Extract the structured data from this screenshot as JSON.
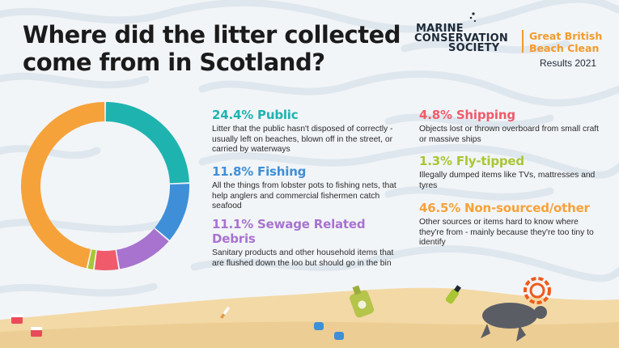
{
  "header": {
    "title": "Where did the litter collected come from in Scotland?"
  },
  "brand": {
    "org_line1": "MARINE",
    "org_line2": "CONSERVATION",
    "org_line3": "SOCIETY",
    "event": "Great British Beach Clean",
    "results": "Results 2021"
  },
  "colors": {
    "public": "#1fb3b0",
    "fishing": "#3f8fd8",
    "sewage": "#a873cf",
    "shipping": "#ef5b6a",
    "flytipped": "#a9c634",
    "other": "#f6a23a"
  },
  "legend": [
    {
      "key": "public",
      "title": "24.4% Public",
      "desc": "Litter that the public hasn't disposed of correctly - usually left on beaches, blown off in the street, or carried by waterways"
    },
    {
      "key": "fishing",
      "title": "11.8% Fishing",
      "desc": "All the things from lobster pots to fishing nets, that help anglers and commercial fishermen catch seafood"
    },
    {
      "key": "sewage",
      "title": "11.1% Sewage Related Debris",
      "desc": "Sanitary products and other household items that are flushed down the loo but should go in the bin"
    },
    {
      "key": "shipping",
      "title": "4.8% Shipping",
      "desc": "Objects lost or thrown overboard from small craft or massive ships"
    },
    {
      "key": "flytipped",
      "title": "1.3% Fly-tipped",
      "desc": "Illegally dumped items like TVs, mattresses and tyres"
    },
    {
      "key": "other",
      "title": "46.5% Non-sourced/other",
      "desc": "Other sources or items hard to know where they're from - mainly because they're too tiny to identify"
    }
  ],
  "chart_data": {
    "type": "pie",
    "style": "donut",
    "title": "Where did the litter collected come from in Scotland?",
    "categories": [
      "Public",
      "Fishing",
      "Sewage Related Debris",
      "Shipping",
      "Fly-tipped",
      "Non-sourced/other"
    ],
    "values": [
      24.4,
      11.8,
      11.1,
      4.8,
      1.3,
      46.5
    ],
    "colors": [
      "#1fb3b0",
      "#3f8fd8",
      "#a873cf",
      "#ef5b6a",
      "#a9c634",
      "#f6a23a"
    ],
    "start_angle_deg": 270,
    "direction": "clockwise"
  }
}
